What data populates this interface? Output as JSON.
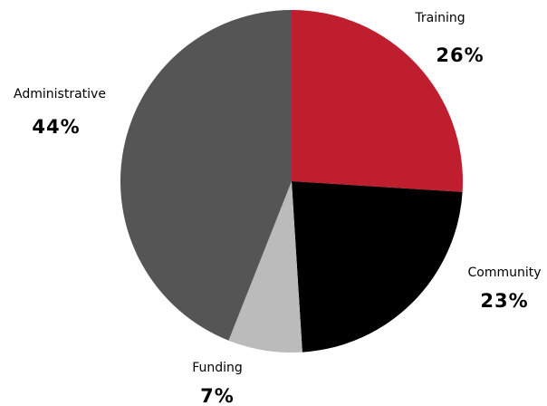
{
  "chart_data": {
    "type": "pie",
    "categories": [
      "Training",
      "Community",
      "Funding",
      "Administrative"
    ],
    "values": [
      26,
      23,
      7,
      44
    ],
    "value_labels": [
      "26%",
      "23%",
      "7%",
      "44%"
    ],
    "colors": [
      "#be1e2d",
      "#000000",
      "#bbbbbb",
      "#555555"
    ]
  }
}
